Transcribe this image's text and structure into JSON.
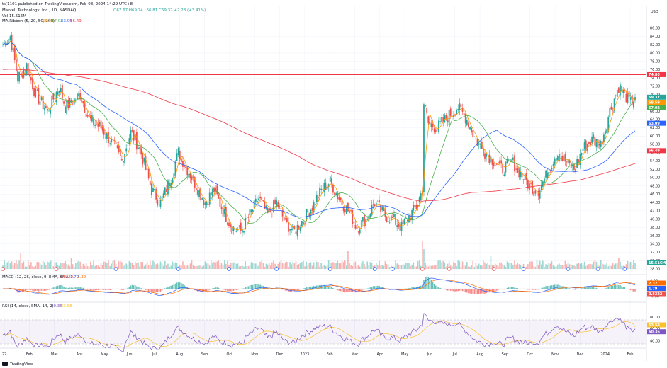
{
  "header": {
    "published": "ts[1101 published on TradingView.com, Feb 08, 2024 14:29 UTC+8",
    "symbol_line": "Marvell Technology, Inc., 1D, NASDAQ",
    "ohlc": "O67.67  H69.74  L66.81  C69.37  +2.28 (+3.41%)",
    "vol_line": "Vol 15.516M",
    "ma_line_label": "MA Ribbon (5, 20, 50, 200)",
    "ma_values": [
      "68.59",
      "67.02",
      "63.09",
      "56.49"
    ],
    "macd_label": "MACD (12, 26, close, 9, EMA, EMA)",
    "macd_values": [
      "0.5322",
      "1.79",
      "2.32"
    ],
    "rsi_label": "RSI (14, close, SMA, 14, 2)",
    "rsi_values": [
      "60.36",
      "63.58"
    ]
  },
  "currency": "USD",
  "footer_brand": "TradingView",
  "colors": {
    "up": "#26a69a",
    "down": "#ef5350",
    "ma5": "#ff9800",
    "ma20": "#4caf50",
    "ma50": "#2962ff",
    "ma200": "#f23645",
    "macd": "#2962ff",
    "signal": "#ff6d00",
    "rsi": "#7e57c2",
    "rsi_ma": "#fbc02d",
    "hline": "#f23645"
  },
  "chart_data": [
    {
      "type": "candlestick",
      "title": "Marvell Technology, Inc., 1D, NASDAQ",
      "ylim": [
        28,
        88
      ],
      "y_ticks": [
        "86.00",
        "84.00",
        "82.00",
        "80.00",
        "78.00",
        "76.00",
        "74.00",
        "72.00",
        "70.00",
        "68.00",
        "66.00",
        "64.00",
        "62.00",
        "60.00",
        "58.00",
        "56.00",
        "54.00",
        "52.00",
        "50.00",
        "48.00",
        "46.00",
        "44.00",
        "42.00",
        "40.00",
        "38.00",
        "36.00",
        "34.00",
        "32.00",
        "30.00",
        "28.00"
      ],
      "x_ticks": [
        "22",
        "Feb",
        "Mar",
        "Apr",
        "May",
        "Jun",
        "Jul",
        "Aug",
        "Sep",
        "Oct",
        "Nov",
        "Dec",
        "2023",
        "Feb",
        "Mar",
        "Apr",
        "May",
        "Jun",
        "Jul",
        "Aug",
        "Sep",
        "Oct",
        "Nov",
        "Dec",
        "2024",
        "Feb"
      ],
      "horizontal_line": {
        "value": 74.8,
        "label": "74.80"
      },
      "last_values": [
        {
          "label": "69.37",
          "value": 69.37,
          "color": "#26a69a"
        },
        {
          "label": "68.59",
          "value": 68.59,
          "color": "#ff9800"
        },
        {
          "label": "67.02",
          "value": 67.02,
          "color": "#4caf50"
        },
        {
          "label": "63.09",
          "value": 63.09,
          "color": "#2962ff"
        },
        {
          "label": "56.49",
          "value": 56.49,
          "color": "#f23645"
        }
      ],
      "close_anchors": [
        [
          0,
          82
        ],
        [
          5,
          84
        ],
        [
          10,
          74
        ],
        [
          16,
          77
        ],
        [
          22,
          70
        ],
        [
          30,
          66
        ],
        [
          38,
          72
        ],
        [
          42,
          67
        ],
        [
          52,
          70
        ],
        [
          58,
          64
        ],
        [
          66,
          62
        ],
        [
          74,
          58
        ],
        [
          80,
          54
        ],
        [
          86,
          61
        ],
        [
          92,
          57
        ],
        [
          100,
          47
        ],
        [
          106,
          44
        ],
        [
          112,
          49
        ],
        [
          118,
          56
        ],
        [
          124,
          52
        ],
        [
          130,
          48
        ],
        [
          136,
          44
        ],
        [
          142,
          47
        ],
        [
          148,
          42
        ],
        [
          154,
          38
        ],
        [
          160,
          37
        ],
        [
          166,
          41
        ],
        [
          172,
          45
        ],
        [
          178,
          41
        ],
        [
          184,
          44
        ],
        [
          190,
          39
        ],
        [
          196,
          37
        ],
        [
          202,
          40
        ],
        [
          208,
          43
        ],
        [
          214,
          47
        ],
        [
          220,
          49
        ],
        [
          226,
          45
        ],
        [
          232,
          42
        ],
        [
          238,
          38
        ],
        [
          244,
          40
        ],
        [
          250,
          44
        ],
        [
          256,
          41
        ],
        [
          262,
          40
        ],
        [
          268,
          38
        ],
        [
          274,
          41
        ],
        [
          278,
          43
        ],
        [
          282,
          47
        ],
        [
          283,
          68
        ],
        [
          286,
          63
        ],
        [
          292,
          62
        ],
        [
          300,
          65
        ],
        [
          306,
          67
        ],
        [
          312,
          64
        ],
        [
          318,
          59
        ],
        [
          324,
          56
        ],
        [
          330,
          54
        ],
        [
          336,
          52
        ],
        [
          342,
          54
        ],
        [
          348,
          51
        ],
        [
          354,
          48
        ],
        [
          360,
          47
        ],
        [
          366,
          51
        ],
        [
          372,
          56
        ],
        [
          378,
          54
        ],
        [
          384,
          52
        ],
        [
          390,
          57
        ],
        [
          396,
          59
        ],
        [
          402,
          58
        ],
        [
          408,
          66
        ],
        [
          414,
          72
        ],
        [
          418,
          70
        ],
        [
          422,
          68
        ],
        [
          425,
          69.4
        ]
      ],
      "series": [
        {
          "name": "MA 5",
          "last": 68.59
        },
        {
          "name": "MA 20",
          "last": 67.02
        },
        {
          "name": "MA 50",
          "last": 63.09
        },
        {
          "name": "MA 200",
          "last": 56.49
        }
      ]
    },
    {
      "type": "bar",
      "title": "Volume",
      "last_label": "15.516M",
      "spikes": [
        [
          12,
          0.55
        ],
        [
          46,
          0.4
        ],
        [
          232,
          0.65
        ],
        [
          282,
          1.0
        ],
        [
          283,
          0.7
        ],
        [
          328,
          0.45
        ],
        [
          414,
          0.4
        ]
      ]
    },
    {
      "type": "line",
      "title": "MACD (12, 26, close, 9, EMA, EMA)",
      "y_ticks": [
        "4.00",
        "0.00",
        "-4.00"
      ],
      "last_values": [
        {
          "label": "2.32",
          "color": "#ff6d00"
        },
        {
          "label": "1.79",
          "color": "#2962ff"
        },
        {
          "label": "0.5322",
          "color": "#ef5350"
        }
      ],
      "series": [
        {
          "name": "MACD"
        },
        {
          "name": "Signal"
        },
        {
          "name": "Histogram"
        }
      ]
    },
    {
      "type": "line",
      "title": "RSI (14, close, SMA, 14, 2)",
      "ylim": [
        30,
        90
      ],
      "y_ticks": [
        "80.00",
        "60.00",
        "40.00"
      ],
      "bands": [
        70,
        30
      ],
      "last_values": [
        {
          "label": "63.58",
          "color": "#fbc02d"
        },
        {
          "label": "60.36",
          "color": "#7e57c2"
        }
      ],
      "series": [
        {
          "name": "RSI",
          "last": 60.36
        },
        {
          "name": "RSI-based MA",
          "last": 63.58
        }
      ]
    }
  ]
}
